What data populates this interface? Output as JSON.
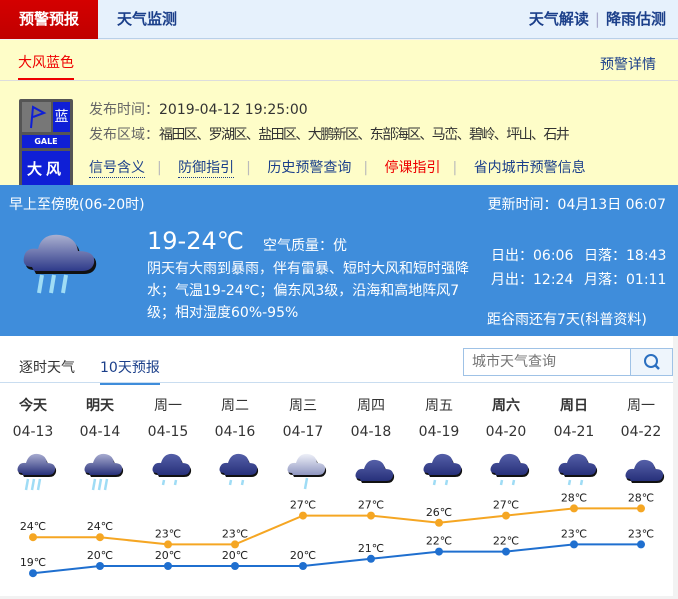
{
  "nav": {
    "active_tab": "预警预报",
    "tab2": "天气监测",
    "right": [
      "天气解读",
      "降雨估测"
    ]
  },
  "warning": {
    "title": "大风蓝色",
    "detail_link": "预警详情",
    "signal": {
      "level_char": "蓝",
      "en": "GALE",
      "name": "大风",
      "color": "#0f1fd6"
    },
    "time_label": "发布时间：",
    "time": "2019-04-12 19:25:00",
    "area_label": "发布区域：",
    "area": "福田区、罗湖区、盐田区、大鹏新区、东部海区、马峦、碧岭、坪山、石井",
    "links": [
      "信号含义",
      "防御指引",
      "历史预警查询",
      "停课指引",
      "省内城市预警信息"
    ]
  },
  "today": {
    "period": "早上至傍晚(06-20时)",
    "update": "更新时间：04月13日 06:07",
    "temp": "19-24℃",
    "aq_label": "空气质量：",
    "aq": "优",
    "icon": "heavy-rain-icon",
    "desc": "阴天有大雨到暴雨，伴有雷暴、短时大风和短时强降水；气温19-24℃；偏东风3级，沿海和高地阵风7级；相对湿度60%-95%",
    "sunrise": "日出：06:06",
    "sunset": "日落：18:43",
    "moonrise": "月出：12:24",
    "moonset": "月落：01:11",
    "solar_term": "距谷雨还有7天(科普资料)"
  },
  "forecast": {
    "tabs": [
      "逐时天气",
      "10天预报"
    ],
    "search_placeholder": "城市天气查询",
    "days": [
      {
        "week": "今天",
        "date": "04-13",
        "icon": "heavy-rain",
        "bold": true
      },
      {
        "week": "明天",
        "date": "04-14",
        "icon": "heavy-rain",
        "bold": true
      },
      {
        "week": "周一",
        "date": "04-15",
        "icon": "moderate-rain"
      },
      {
        "week": "周二",
        "date": "04-16",
        "icon": "moderate-rain"
      },
      {
        "week": "周三",
        "date": "04-17",
        "icon": "light-rain"
      },
      {
        "week": "周四",
        "date": "04-18",
        "icon": "overcast"
      },
      {
        "week": "周五",
        "date": "04-19",
        "icon": "moderate-rain"
      },
      {
        "week": "周六",
        "date": "04-20",
        "icon": "moderate-rain",
        "bold": true
      },
      {
        "week": "周日",
        "date": "04-21",
        "icon": "moderate-rain",
        "bold": true
      },
      {
        "week": "周一",
        "date": "04-22",
        "icon": "overcast"
      }
    ]
  },
  "chart_data": {
    "type": "line",
    "categories": [
      "04-13",
      "04-14",
      "04-15",
      "04-16",
      "04-17",
      "04-18",
      "04-19",
      "04-20",
      "04-21",
      "04-22"
    ],
    "unit": "℃",
    "series": [
      {
        "values": [
          24,
          24,
          23,
          23,
          27,
          27,
          26,
          27,
          28,
          28
        ],
        "color": "#f5a623"
      },
      {
        "values": [
          19,
          20,
          20,
          20,
          20,
          21,
          22,
          22,
          23,
          23
        ],
        "color": "#1f6fcf"
      }
    ]
  }
}
